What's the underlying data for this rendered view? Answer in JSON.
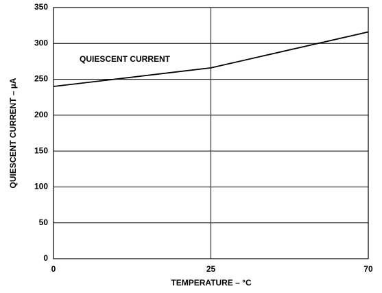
{
  "chart_data": {
    "type": "line",
    "x_label": "TEMPERATURE – °C",
    "y_label": "QUIESCENT CURRENT – µA",
    "annotation": "QUIESCENT CURRENT",
    "categories": [
      "0",
      "25",
      "70"
    ],
    "series": [
      {
        "name": "QUIESCENT CURRENT",
        "color": "#000000",
        "values": [
          240,
          266,
          316
        ]
      }
    ],
    "ylim": [
      0,
      350
    ],
    "yticks": [
      0,
      50,
      100,
      150,
      200,
      250,
      300,
      350
    ],
    "grid": true
  }
}
